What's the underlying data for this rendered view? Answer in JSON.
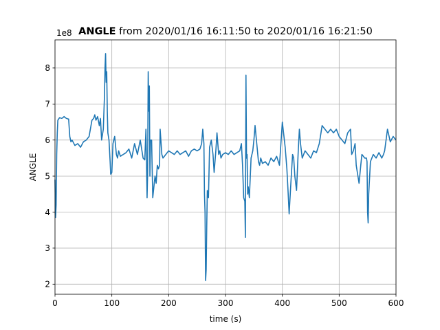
{
  "chart_data": {
    "type": "line",
    "title": {
      "bold": "ANGLE",
      "rest": " from 2020/01/16 16:11:50 to 2020/01/16 16:21:50"
    },
    "xlabel": "time (s)",
    "ylabel": "ANGLE",
    "offset_text": "1e8",
    "xlim": [
      0,
      600
    ],
    "ylim": [
      1.72,
      8.78
    ],
    "xticks": [
      0,
      100,
      200,
      300,
      400,
      500,
      600
    ],
    "yticks": [
      2,
      3,
      4,
      5,
      6,
      7,
      8
    ],
    "grid": true,
    "series": [
      {
        "color": "#1f77b4",
        "x": [
          0,
          1,
          2,
          3,
          4,
          5,
          8,
          12,
          16,
          20,
          24,
          26,
          28,
          30,
          35,
          40,
          45,
          50,
          55,
          60,
          65,
          68,
          70,
          72,
          75,
          78,
          80,
          82,
          85,
          87,
          88,
          89,
          90,
          91,
          92,
          93,
          95,
          97,
          98,
          100,
          102,
          105,
          108,
          110,
          112,
          115,
          120,
          125,
          130,
          135,
          140,
          145,
          150,
          155,
          158,
          160,
          162,
          163,
          164,
          165,
          166,
          167,
          168,
          170,
          172,
          174,
          176,
          178,
          180,
          182,
          184,
          185,
          188,
          190,
          195,
          200,
          205,
          210,
          215,
          220,
          225,
          230,
          235,
          240,
          245,
          250,
          255,
          258,
          260,
          262,
          263,
          264,
          265,
          266,
          267,
          268,
          270,
          272,
          275,
          278,
          280,
          283,
          285,
          288,
          290,
          292,
          295,
          300,
          305,
          310,
          315,
          320,
          325,
          328,
          330,
          332,
          334,
          335,
          336,
          337,
          338,
          339,
          340,
          342,
          345,
          348,
          350,
          352,
          355,
          358,
          360,
          362,
          365,
          370,
          375,
          380,
          385,
          390,
          395,
          400,
          405,
          408,
          410,
          412,
          415,
          418,
          420,
          422,
          425,
          428,
          430,
          432,
          435,
          440,
          445,
          450,
          455,
          460,
          465,
          468,
          470,
          475,
          480,
          485,
          490,
          495,
          500,
          505,
          510,
          515,
          520,
          522,
          525,
          528,
          530,
          532,
          535,
          538,
          540,
          545,
          548,
          549,
          550,
          551,
          552,
          555,
          560,
          565,
          570,
          575,
          578,
          580,
          585,
          590,
          595,
          600
        ],
        "y": [
          4.9,
          3.85,
          4.2,
          5.6,
          6.2,
          6.55,
          6.62,
          6.6,
          6.65,
          6.6,
          6.58,
          6.1,
          5.95,
          6.0,
          5.85,
          5.9,
          5.8,
          5.95,
          6.0,
          6.1,
          6.55,
          6.6,
          6.7,
          6.55,
          6.65,
          6.4,
          6.6,
          6.0,
          6.3,
          7.2,
          8.0,
          8.4,
          7.6,
          7.9,
          6.8,
          6.2,
          6.0,
          5.4,
          5.05,
          5.1,
          5.9,
          6.1,
          5.6,
          5.5,
          5.7,
          5.55,
          5.6,
          5.65,
          5.75,
          5.5,
          5.9,
          5.6,
          6.0,
          5.5,
          5.45,
          6.3,
          4.4,
          5.1,
          7.9,
          6.8,
          7.5,
          5.0,
          6.0,
          6.0,
          4.4,
          4.7,
          5.0,
          4.8,
          5.3,
          5.2,
          5.3,
          6.3,
          5.6,
          5.5,
          5.6,
          5.7,
          5.65,
          5.6,
          5.7,
          5.6,
          5.65,
          5.7,
          5.55,
          5.7,
          5.75,
          5.7,
          5.75,
          5.9,
          6.3,
          5.9,
          4.5,
          4.0,
          2.1,
          2.4,
          3.6,
          4.6,
          4.4,
          5.8,
          6.0,
          5.6,
          5.1,
          5.7,
          6.2,
          5.6,
          5.7,
          5.5,
          5.6,
          5.65,
          5.6,
          5.7,
          5.6,
          5.65,
          5.7,
          5.9,
          5.3,
          4.4,
          4.3,
          3.3,
          7.8,
          5.5,
          5.6,
          4.5,
          4.7,
          4.4,
          5.5,
          5.7,
          6.0,
          6.4,
          5.9,
          5.4,
          5.3,
          5.5,
          5.35,
          5.4,
          5.3,
          5.5,
          5.4,
          5.55,
          5.3,
          6.5,
          5.8,
          5.2,
          4.6,
          3.95,
          4.8,
          5.6,
          5.5,
          5.0,
          4.6,
          5.7,
          6.3,
          5.9,
          5.5,
          5.7,
          5.6,
          5.5,
          5.7,
          5.65,
          5.9,
          6.2,
          6.4,
          6.3,
          6.2,
          6.3,
          6.2,
          6.3,
          6.1,
          6.0,
          5.9,
          6.2,
          6.3,
          5.6,
          5.7,
          5.9,
          5.3,
          5.1,
          4.8,
          5.3,
          5.6,
          5.5,
          5.5,
          5.4,
          4.0,
          3.7,
          4.5,
          5.4,
          5.6,
          5.5,
          5.65,
          5.5,
          5.6,
          5.7,
          6.3,
          5.95,
          6.1,
          6.0
        ]
      }
    ]
  }
}
